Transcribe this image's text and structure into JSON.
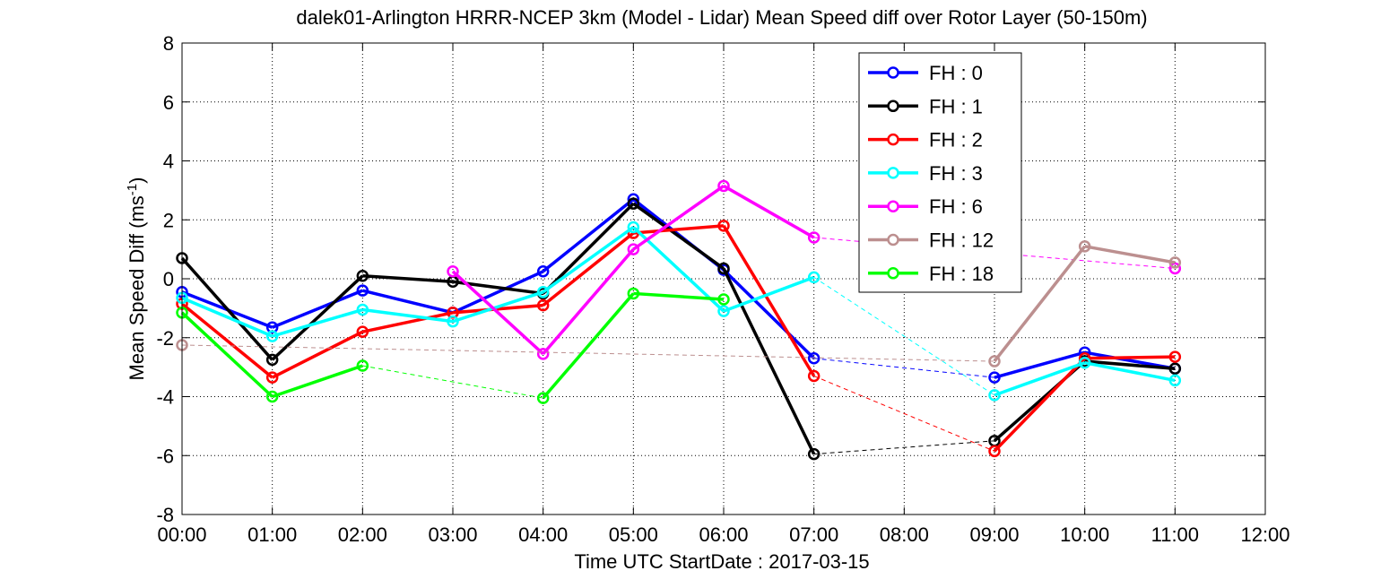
{
  "chart_data": {
    "type": "line",
    "title": "dalek01-Arlington HRRR-NCEP 3km (Model - Lidar) Mean Speed diff over Rotor Layer (50-150m)",
    "xlabel": "Time UTC    StartDate : 2017-03-15",
    "ylabel_main": "Mean Speed Diff (ms",
    "ylabel_sup": "-1",
    "ylabel_end": ")",
    "xlim": [
      0,
      12
    ],
    "ylim": [
      -8,
      8
    ],
    "x_ticks": [
      0,
      1,
      2,
      3,
      4,
      5,
      6,
      7,
      8,
      9,
      10,
      11,
      12
    ],
    "x_tick_labels": [
      "00:00",
      "01:00",
      "02:00",
      "03:00",
      "04:00",
      "05:00",
      "06:00",
      "07:00",
      "08:00",
      "09:00",
      "10:00",
      "11:00",
      "12:00"
    ],
    "y_ticks": [
      -8,
      -6,
      -4,
      -2,
      0,
      2,
      4,
      6,
      8
    ],
    "y_tick_labels": [
      "-8",
      "-6",
      "-4",
      "-2",
      "0",
      "2",
      "4",
      "6",
      "8"
    ],
    "grid": true,
    "legend_position": "top-right",
    "series": [
      {
        "name": "FH : 0",
        "color": "#0000ff",
        "points": [
          [
            0,
            -0.45
          ],
          [
            1,
            -1.65
          ],
          [
            2,
            -0.4
          ],
          [
            3,
            -1.15
          ],
          [
            4,
            0.25
          ],
          [
            5,
            2.7
          ],
          [
            6,
            0.3
          ],
          [
            7,
            -2.7
          ],
          [
            9,
            -3.35
          ],
          [
            10,
            -2.5
          ],
          [
            11,
            -3.05
          ]
        ]
      },
      {
        "name": "FH : 1",
        "color": "#000000",
        "points": [
          [
            0,
            0.7
          ],
          [
            1,
            -2.75
          ],
          [
            2,
            0.1
          ],
          [
            3,
            -0.1
          ],
          [
            4,
            -0.5
          ],
          [
            5,
            2.55
          ],
          [
            6,
            0.35
          ],
          [
            7,
            -5.95
          ],
          [
            9,
            -5.5
          ],
          [
            10,
            -2.8
          ],
          [
            11,
            -3.05
          ]
        ]
      },
      {
        "name": "FH : 2",
        "color": "#ff0000",
        "points": [
          [
            0,
            -0.85
          ],
          [
            1,
            -3.35
          ],
          [
            2,
            -1.8
          ],
          [
            3,
            -1.15
          ],
          [
            4,
            -0.9
          ],
          [
            5,
            1.55
          ],
          [
            6,
            1.8
          ],
          [
            7,
            -3.3
          ],
          [
            9,
            -5.85
          ],
          [
            10,
            -2.7
          ],
          [
            11,
            -2.65
          ]
        ]
      },
      {
        "name": "FH : 3",
        "color": "#00ffff",
        "points": [
          [
            0,
            -0.65
          ],
          [
            1,
            -1.95
          ],
          [
            2,
            -1.05
          ],
          [
            3,
            -1.45
          ],
          [
            4,
            -0.45
          ],
          [
            5,
            1.75
          ],
          [
            6,
            -1.1
          ],
          [
            7,
            0.05
          ],
          [
            9,
            -3.95
          ],
          [
            10,
            -2.85
          ],
          [
            11,
            -3.45
          ]
        ]
      },
      {
        "name": "FH : 6",
        "color": "#ff00ff",
        "points": [
          [
            3,
            0.25
          ],
          [
            4,
            -2.55
          ],
          [
            5,
            1.0
          ],
          [
            6,
            3.15
          ],
          [
            7,
            1.4
          ],
          [
            11,
            0.35
          ]
        ]
      },
      {
        "name": "FH : 12",
        "color": "#bc8f8f",
        "points": [
          [
            0,
            -2.25
          ],
          [
            9,
            -2.8
          ],
          [
            10,
            1.1
          ],
          [
            11,
            0.55
          ]
        ]
      },
      {
        "name": "FH : 18",
        "color": "#00ff00",
        "points": [
          [
            0,
            -1.15
          ],
          [
            1,
            -4.0
          ],
          [
            2,
            -2.95
          ],
          [
            4,
            -4.05
          ],
          [
            5,
            -0.5
          ],
          [
            6,
            -0.7
          ]
        ]
      }
    ]
  }
}
